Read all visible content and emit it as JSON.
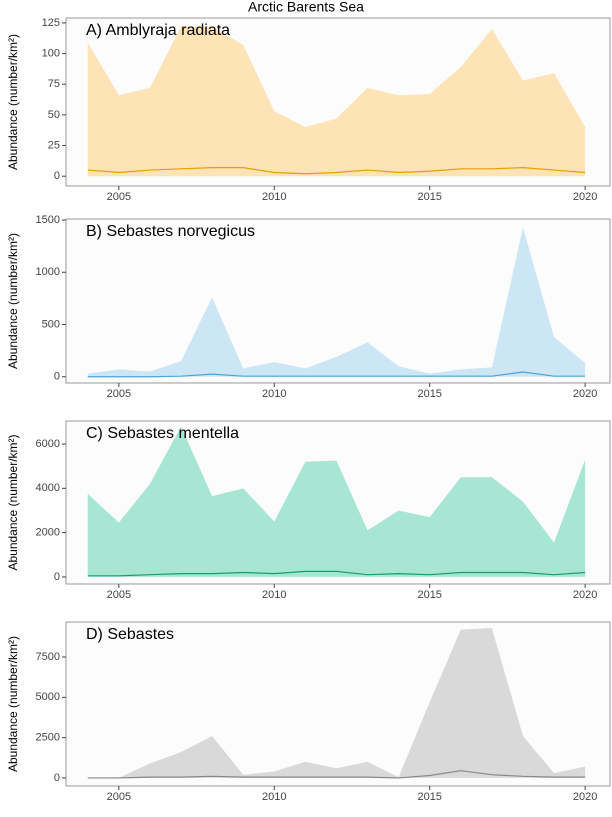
{
  "title": "Arctic Barents Sea",
  "chart_data": [
    {
      "type": "area",
      "title": "A) Amblyraja radiata",
      "ylabel": "Abundance (number/km²)",
      "x": [
        2004,
        2005,
        2006,
        2007,
        2008,
        2009,
        2010,
        2011,
        2012,
        2013,
        2014,
        2015,
        2016,
        2017,
        2018,
        2019,
        2020
      ],
      "series": [
        {
          "type": "area",
          "color": "#fde3b5",
          "values": [
            109,
            66,
            72,
            122,
            122,
            107,
            53,
            40,
            47,
            72,
            66,
            67,
            89,
            120,
            78,
            84,
            40
          ]
        },
        {
          "type": "line",
          "color": "#e6a000",
          "values": [
            5,
            3,
            5,
            6,
            7,
            7,
            3,
            2,
            3,
            5,
            3,
            4,
            6,
            6,
            7,
            5,
            3
          ]
        }
      ],
      "xlim": [
        2003.3,
        2020.8
      ],
      "xticks": [
        2005,
        2010,
        2015,
        2020
      ],
      "ylim": [
        -8,
        129
      ],
      "yticks": [
        0,
        25,
        50,
        75,
        100,
        125
      ]
    },
    {
      "type": "area",
      "title": "B) Sebastes norvegicus",
      "ylabel": "Abundance (number/km²)",
      "x": [
        2004,
        2005,
        2006,
        2007,
        2008,
        2009,
        2010,
        2011,
        2012,
        2013,
        2014,
        2015,
        2016,
        2017,
        2018,
        2019,
        2020
      ],
      "series": [
        {
          "type": "area",
          "color": "#cde6f6",
          "values": [
            30,
            70,
            50,
            150,
            760,
            80,
            140,
            80,
            190,
            330,
            100,
            30,
            70,
            90,
            1430,
            380,
            130
          ]
        },
        {
          "type": "line",
          "color": "#4aa3dc",
          "values": [
            0,
            0,
            0,
            5,
            25,
            5,
            5,
            5,
            5,
            5,
            5,
            5,
            5,
            5,
            45,
            5,
            5
          ]
        }
      ],
      "xlim": [
        2003.3,
        2020.8
      ],
      "xticks": [
        2005,
        2010,
        2015,
        2020
      ],
      "ylim": [
        -60,
        1510
      ],
      "yticks": [
        0,
        500,
        1000,
        1500
      ]
    },
    {
      "type": "area",
      "title": "C) Sebastes mentella",
      "ylabel": "Abundance (number/km²)",
      "x": [
        2004,
        2005,
        2006,
        2007,
        2008,
        2009,
        2010,
        2011,
        2012,
        2013,
        2014,
        2015,
        2016,
        2017,
        2018,
        2019,
        2020
      ],
      "series": [
        {
          "type": "area",
          "color": "#a8e6d4",
          "values": [
            3750,
            2450,
            4200,
            6800,
            3650,
            4000,
            2500,
            5200,
            5250,
            2100,
            3000,
            2700,
            4500,
            4500,
            3400,
            1550,
            5300
          ]
        },
        {
          "type": "line",
          "color": "#1a9e6e",
          "values": [
            50,
            50,
            100,
            150,
            150,
            200,
            150,
            250,
            250,
            100,
            150,
            100,
            200,
            200,
            200,
            100,
            200
          ]
        }
      ],
      "xlim": [
        2003.3,
        2020.8
      ],
      "xticks": [
        2005,
        2010,
        2015,
        2020
      ],
      "ylim": [
        -320,
        7040
      ],
      "yticks": [
        0,
        2000,
        4000,
        6000
      ]
    },
    {
      "type": "area",
      "title": "D) Sebastes",
      "ylabel": "Abundance (number/km²)",
      "x": [
        2004,
        2005,
        2006,
        2007,
        2008,
        2009,
        2010,
        2011,
        2012,
        2013,
        2014,
        2015,
        2016,
        2017,
        2018,
        2019,
        2020
      ],
      "series": [
        {
          "type": "area",
          "color": "#d9d9d9",
          "values": [
            0,
            0,
            900,
            1600,
            2600,
            200,
            400,
            1000,
            600,
            1000,
            50,
            4700,
            9200,
            9300,
            2600,
            300,
            700
          ]
        },
        {
          "type": "line",
          "color": "#888888",
          "values": [
            0,
            0,
            50,
            50,
            100,
            50,
            50,
            50,
            50,
            50,
            0,
            150,
            450,
            200,
            100,
            50,
            50
          ]
        }
      ],
      "xlim": [
        2003.3,
        2020.8
      ],
      "xticks": [
        2005,
        2010,
        2015,
        2020
      ],
      "ylim": [
        -500,
        9670
      ],
      "yticks": [
        0,
        2500,
        5000,
        7500
      ]
    }
  ]
}
